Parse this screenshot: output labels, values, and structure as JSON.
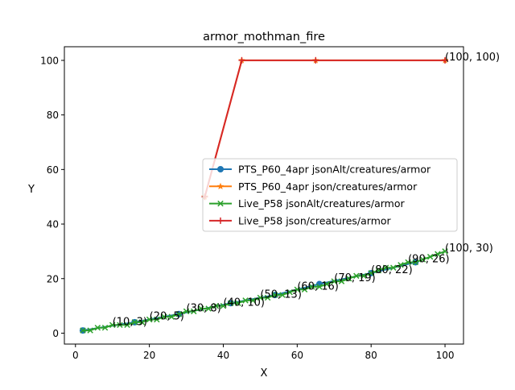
{
  "chart_data": {
    "type": "line",
    "title": "armor_mothman_fire",
    "xlabel": "X",
    "ylabel": "Y",
    "xlim": [
      -3,
      105
    ],
    "ylim": [
      -4,
      105
    ],
    "x_ticks": [
      0,
      20,
      40,
      60,
      80,
      100
    ],
    "y_ticks": [
      0,
      20,
      40,
      60,
      80,
      100
    ],
    "grid": false,
    "legend_position": "center-right",
    "series": [
      {
        "name": "PTS_P60_4apr jsonAlt/creatures/armor",
        "color": "#1f77b4",
        "marker": "circle",
        "x": [
          2,
          16,
          28,
          42,
          54,
          66,
          80,
          92
        ],
        "y": [
          1,
          4,
          7,
          11,
          14,
          18,
          22,
          26
        ]
      },
      {
        "name": "PTS_P60_4apr json/creatures/armor",
        "color": "#ff7f0e",
        "marker": "star",
        "x": [
          35,
          45,
          65,
          100
        ],
        "y": [
          50,
          100,
          100,
          100
        ]
      },
      {
        "name": "Live_P58 jsonAlt/creatures/armor",
        "color": "#2ca02c",
        "marker": "x",
        "x": [
          2,
          4,
          6,
          8,
          10,
          12,
          14,
          16,
          18,
          20,
          22,
          24,
          26,
          28,
          30,
          32,
          34,
          36,
          38,
          40,
          42,
          44,
          46,
          48,
          50,
          52,
          54,
          56,
          58,
          60,
          62,
          64,
          66,
          68,
          70,
          72,
          74,
          76,
          78,
          80,
          82,
          84,
          86,
          88,
          90,
          92,
          94,
          96,
          98,
          100
        ],
        "y": [
          1,
          1,
          2,
          2,
          3,
          3,
          3,
          4,
          4,
          5,
          5,
          6,
          6,
          7,
          8,
          8,
          9,
          9,
          10,
          10,
          11,
          11,
          12,
          12,
          13,
          13,
          14,
          14,
          15,
          16,
          16,
          17,
          17,
          18,
          19,
          19,
          20,
          21,
          21,
          22,
          23,
          24,
          24,
          25,
          26,
          26,
          27,
          28,
          29,
          30
        ]
      },
      {
        "name": "Live_P58 json/creatures/armor",
        "color": "#d62728",
        "marker": "plus",
        "x": [
          35,
          45,
          65,
          100
        ],
        "y": [
          50,
          100,
          100,
          100
        ]
      }
    ],
    "annotations": [
      {
        "text": "(10, 3)",
        "x": 10,
        "y": 3
      },
      {
        "text": "(20, 5)",
        "x": 20,
        "y": 5
      },
      {
        "text": "(30, 8)",
        "x": 30,
        "y": 8
      },
      {
        "text": "(40, 10)",
        "x": 40,
        "y": 10
      },
      {
        "text": "(50, 13)",
        "x": 50,
        "y": 13
      },
      {
        "text": "(60, 16)",
        "x": 60,
        "y": 16
      },
      {
        "text": "(70, 19)",
        "x": 70,
        "y": 19
      },
      {
        "text": "(80, 22)",
        "x": 80,
        "y": 22
      },
      {
        "text": "(90, 26)",
        "x": 90,
        "y": 26
      },
      {
        "text": "(100, 30)",
        "x": 100,
        "y": 30
      },
      {
        "text": "(100, 100)",
        "x": 100,
        "y": 100
      }
    ]
  }
}
